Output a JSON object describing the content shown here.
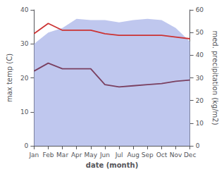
{
  "chart_data": {
    "type": "line",
    "categories": [
      "Jan",
      "Feb",
      "Mar",
      "Apr",
      "May",
      "Jun",
      "Jul",
      "Aug",
      "Sep",
      "Oct",
      "Nov",
      "Dec"
    ],
    "xlabel": "date (month)",
    "ylabel": "max temp (C)",
    "y2label": "med. precipitation (kg/m2)",
    "ylim": [
      0,
      40
    ],
    "yticks": [
      0,
      10,
      20,
      30,
      40
    ],
    "y2lim": [
      0,
      60
    ],
    "y2ticks": [
      0,
      10,
      20,
      30,
      40,
      50,
      60
    ],
    "grid": false,
    "series": [
      {
        "type": "area",
        "axis": "y2",
        "color": "#aab4e8",
        "values": [
          45.0,
          50.0,
          52.0,
          56.0,
          55.5,
          55.5,
          54.5,
          55.5,
          56.0,
          55.5,
          52.0,
          46.0
        ]
      },
      {
        "type": "line",
        "axis": "y2",
        "color": "#7a4060",
        "values": [
          33.0,
          36.5,
          34.0,
          34.0,
          34.0,
          27.0,
          26.0,
          26.5,
          27.0,
          27.5,
          28.5,
          29.0
        ]
      },
      {
        "type": "line",
        "color": "#cc3333",
        "values": [
          33.0,
          36.0,
          34.0,
          34.0,
          34.0,
          33.0,
          32.5,
          32.5,
          32.5,
          32.5,
          32.0,
          31.5
        ]
      }
    ]
  }
}
